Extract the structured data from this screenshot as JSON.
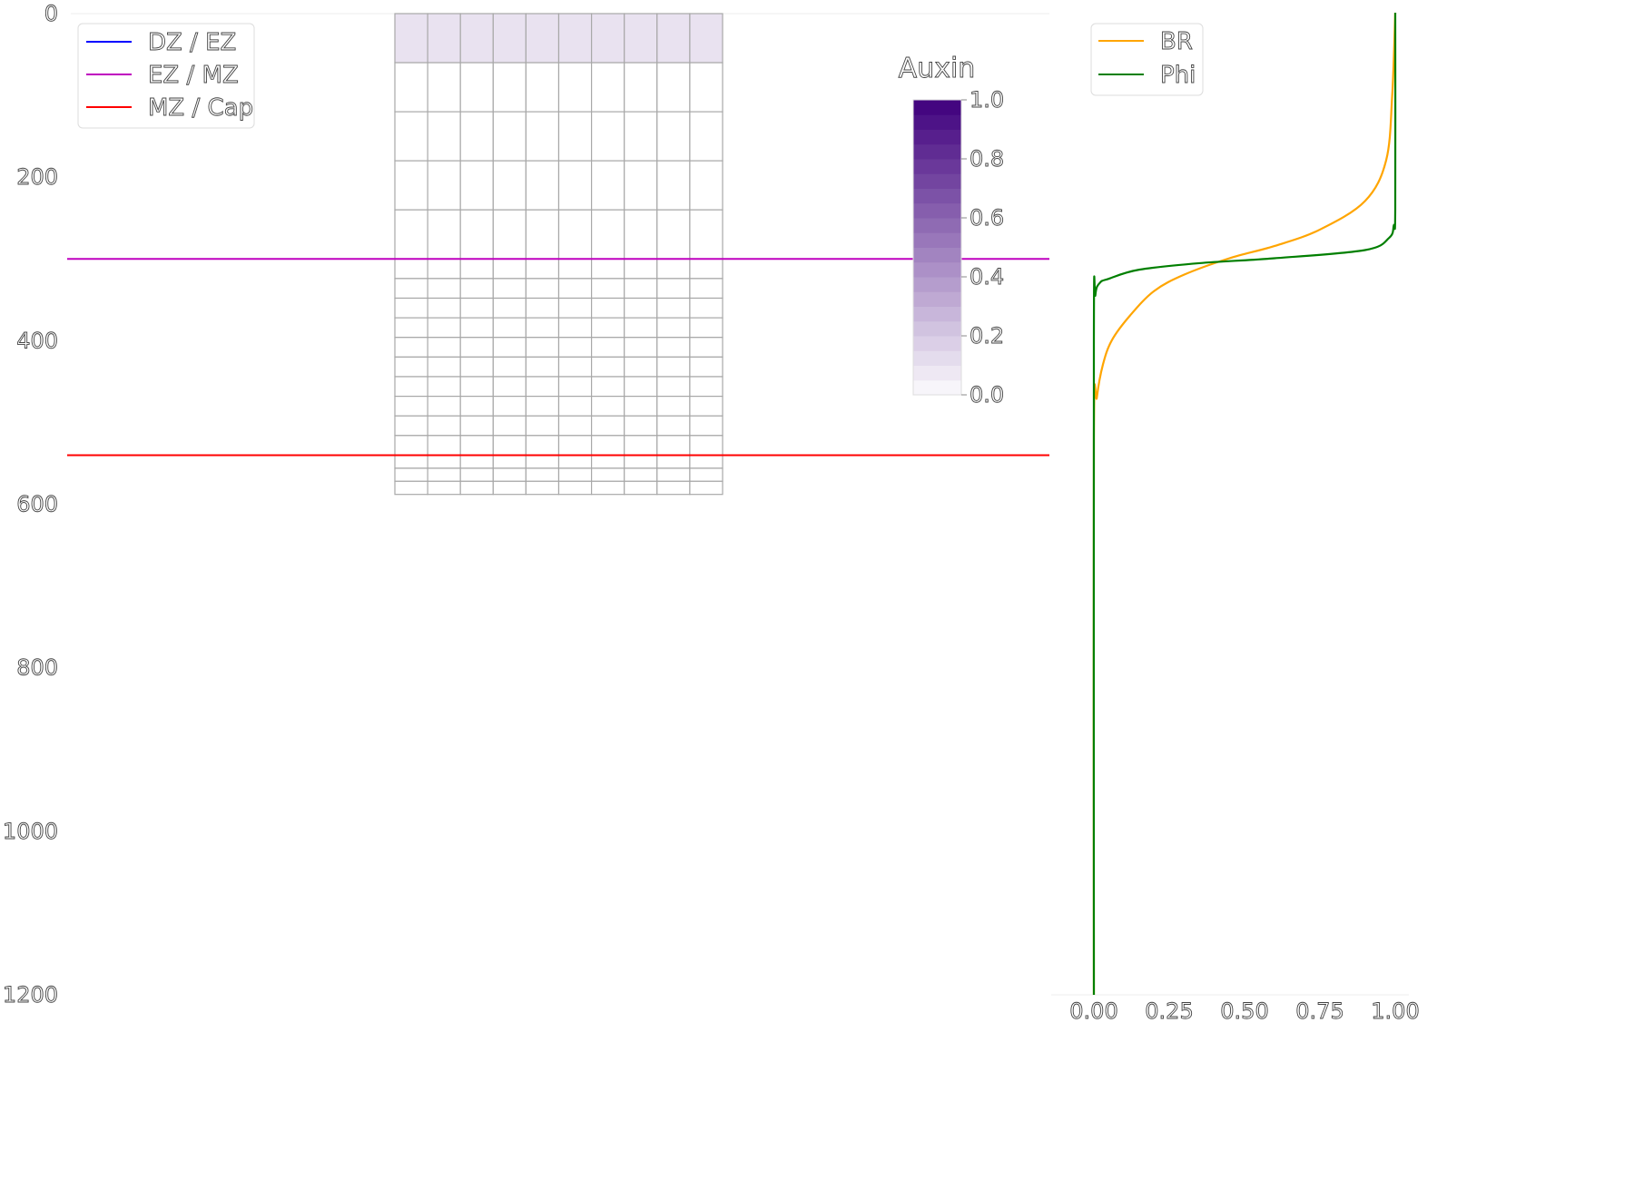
{
  "chart_data": [
    {
      "type": "heatmap",
      "ylim": [
        1200,
        0
      ],
      "y_ticks": [
        0,
        200,
        400,
        600,
        800,
        1000,
        1200
      ],
      "y_tick_labels": [
        "0",
        "200",
        "400",
        "600",
        "800",
        "1000",
        "1200"
      ],
      "cell_columns": 10,
      "x_range": [
        0,
        200
      ],
      "row_boundaries": [
        0,
        60,
        120,
        180,
        240,
        300,
        324,
        348,
        372,
        396,
        420,
        444,
        468,
        492,
        516,
        540,
        556,
        572,
        588
      ],
      "auxin_per_row": [
        0.1,
        0,
        0,
        0,
        0,
        0,
        0,
        0,
        0,
        0,
        0,
        0,
        0,
        0,
        0,
        0,
        0,
        0
      ],
      "zone_lines": [
        {
          "label": "DZ / EZ",
          "color": "#0000ff",
          "y": null
        },
        {
          "label": "EZ / MZ",
          "color": "#bf00bf",
          "y": 300
        },
        {
          "label": "MZ / Cap",
          "color": "#ff0000",
          "y": 540
        }
      ],
      "colorbar": {
        "title": "Auxin",
        "range": [
          0,
          1
        ],
        "ticks": [
          0.0,
          0.2,
          0.4,
          0.6,
          0.8,
          1.0
        ],
        "tick_labels": [
          "0.0",
          "0.2",
          "0.4",
          "0.6",
          "0.8",
          "1.0"
        ],
        "color_low": "#fcfbfd",
        "color_high": "#3f007d"
      }
    },
    {
      "type": "line",
      "xlim": [
        0,
        1
      ],
      "ylim": [
        1200,
        0
      ],
      "x_ticks": [
        0,
        0.25,
        0.5,
        0.75,
        1.0
      ],
      "x_tick_labels": [
        "0.00",
        "0.25",
        "0.50",
        "0.75",
        "1.00"
      ],
      "series": [
        {
          "name": "BR",
          "color": "#ffa500",
          "x": [
            1.0,
            0.99,
            0.97,
            0.9,
            0.75,
            0.6,
            0.45,
            0.3,
            0.2,
            0.12,
            0.06,
            0.03,
            0.01,
            0.0,
            0.0
          ],
          "y": [
            0,
            100,
            180,
            230,
            265,
            285,
            300,
            320,
            340,
            370,
            400,
            430,
            470,
            520,
            1200
          ]
        },
        {
          "name": "Phi",
          "color": "#007f00",
          "x": [
            1.0,
            1.0,
            0.995,
            0.98,
            0.9,
            0.6,
            0.35,
            0.15,
            0.05,
            0.02,
            0.005,
            0.0,
            0.0
          ],
          "y": [
            0,
            240,
            260,
            275,
            290,
            300,
            306,
            314,
            325,
            330,
            345,
            400,
            1200
          ]
        }
      ]
    }
  ]
}
